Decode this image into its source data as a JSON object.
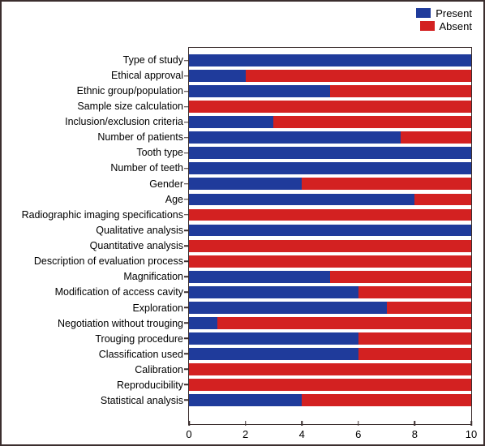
{
  "chart": {
    "type": "stacked-horizontal-bar",
    "xmax": 10,
    "xmin": 0,
    "xtick_step": 2,
    "xticks": [
      0,
      2,
      4,
      6,
      8,
      10
    ],
    "background_color": "#ffffff",
    "border_color": "#3b2e2e",
    "bar_height_ratio": 0.78,
    "label_fontsize": 12.5,
    "tick_fontsize": 13,
    "colors": {
      "present": "#1f3b9b",
      "absent": "#d32121"
    },
    "legend": {
      "position": "top-right",
      "items": [
        {
          "label": "Present",
          "color_key": "present"
        },
        {
          "label": "Absent",
          "color_key": "absent"
        }
      ]
    },
    "categories": [
      {
        "label": "Type of study",
        "present": 10,
        "absent": 0
      },
      {
        "label": "Ethical approval",
        "present": 2,
        "absent": 8
      },
      {
        "label": "Ethnic group/population",
        "present": 5,
        "absent": 5
      },
      {
        "label": "Sample size calculation",
        "present": 0,
        "absent": 10
      },
      {
        "label": "Inclusion/exclusion criteria",
        "present": 3,
        "absent": 7
      },
      {
        "label": "Number of patients",
        "present": 7.5,
        "absent": 2.5
      },
      {
        "label": "Tooth type",
        "present": 10,
        "absent": 0
      },
      {
        "label": "Number of teeth",
        "present": 10,
        "absent": 0
      },
      {
        "label": "Gender",
        "present": 4,
        "absent": 6
      },
      {
        "label": "Age",
        "present": 8,
        "absent": 2
      },
      {
        "label": "Radiographic imaging specifications",
        "present": 0,
        "absent": 10
      },
      {
        "label": "Qualitative analysis",
        "present": 10,
        "absent": 0
      },
      {
        "label": "Quantitative analysis",
        "present": 0,
        "absent": 10
      },
      {
        "label": "Description of evaluation process",
        "present": 0,
        "absent": 10
      },
      {
        "label": "Magnification",
        "present": 5,
        "absent": 5
      },
      {
        "label": "Modification of access cavity",
        "present": 6,
        "absent": 4
      },
      {
        "label": "Exploration",
        "present": 7,
        "absent": 3
      },
      {
        "label": "Negotiation without trouging",
        "present": 1,
        "absent": 9
      },
      {
        "label": "Trouging procedure",
        "present": 6,
        "absent": 4
      },
      {
        "label": "Classification used",
        "present": 6,
        "absent": 4
      },
      {
        "label": "Calibration",
        "present": 0,
        "absent": 10
      },
      {
        "label": "Reproducibility",
        "present": 0,
        "absent": 10
      },
      {
        "label": "Statistical analysis",
        "present": 4,
        "absent": 6
      }
    ]
  }
}
